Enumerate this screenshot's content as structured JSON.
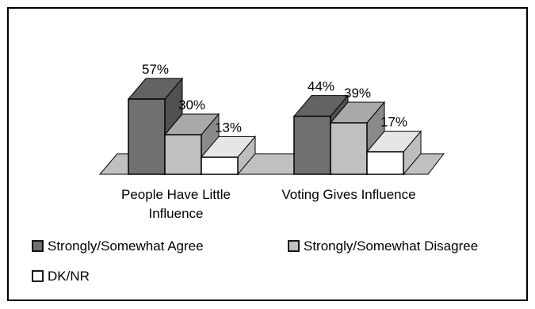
{
  "chart_data": {
    "type": "bar",
    "style": "3d-clustered",
    "categories": [
      "People Have Little Influence",
      "Voting Gives Influence"
    ],
    "category_lines": [
      [
        "People Have Little",
        "Influence"
      ],
      [
        "Voting Gives Influence"
      ]
    ],
    "series": [
      {
        "name": "Strongly/Somewhat Agree",
        "values": [
          57,
          44
        ],
        "value_labels": [
          "57%",
          "44%"
        ],
        "color": "#707070"
      },
      {
        "name": "Strongly/Somewhat Disagree",
        "values": [
          30,
          39
        ],
        "value_labels": [
          "30%",
          "39%"
        ],
        "color": "#c0c0c0"
      },
      {
        "name": "DK/NR",
        "values": [
          13,
          17
        ],
        "value_labels": [
          "13%",
          "17%"
        ],
        "color": "#ffffff"
      }
    ],
    "ylim": [
      0,
      57
    ],
    "grid": false,
    "legend_position": "bottom",
    "floor_color": "#c0c0c0"
  }
}
